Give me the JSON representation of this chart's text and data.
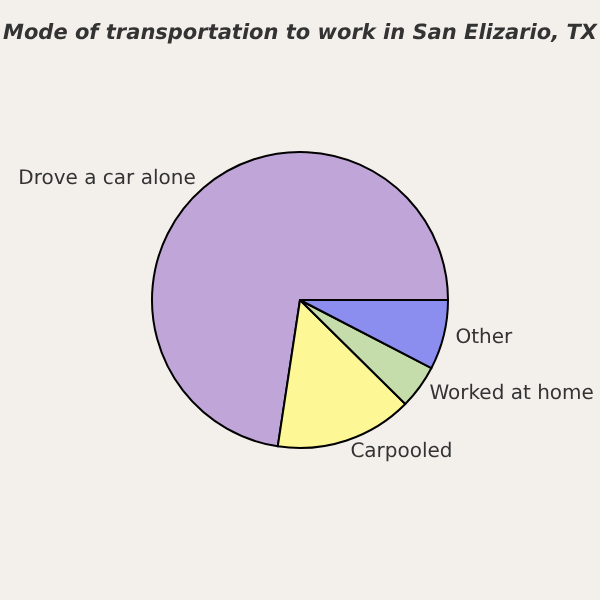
{
  "chart_data": {
    "type": "pie",
    "title": "Mode of transportation to work in San Elizario, TX",
    "categories": [
      "Drove a car alone",
      "Carpooled",
      "Worked at home",
      "Other"
    ],
    "values": [
      72.6,
      15.0,
      4.8,
      7.6
    ],
    "colors": [
      "#bfa5d8",
      "#fdf796",
      "#c5dcab",
      "#8c8eef"
    ],
    "legend": false
  }
}
